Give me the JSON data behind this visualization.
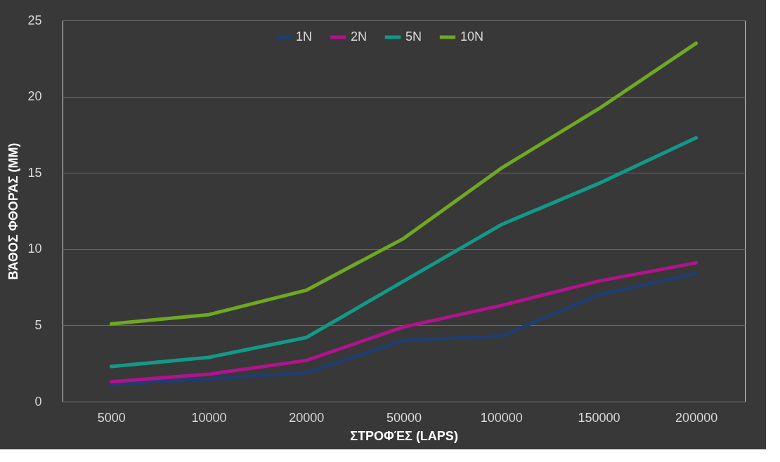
{
  "chart_data": {
    "type": "line",
    "xlabel": "ΣΤΡΟΦΈΣ (LAPS)",
    "ylabel": "ΒΆΘΟΣ ΦΘΟΡΆΣ (MM)",
    "categories": [
      "5000",
      "10000",
      "20000",
      "50000",
      "100000",
      "150000",
      "200000"
    ],
    "ylim": [
      0,
      25
    ],
    "yticks": [
      0,
      5,
      10,
      15,
      20,
      25
    ],
    "grid": "y",
    "legend": "top",
    "marker": "none",
    "line_style": "solid",
    "series": [
      {
        "name": "1N",
        "color": "#1f3d6e",
        "values": [
          1.1,
          1.5,
          1.9,
          4.0,
          4.3,
          7.0,
          8.4
        ]
      },
      {
        "name": "2N",
        "color": "#b0138c",
        "values": [
          1.3,
          1.8,
          2.7,
          4.9,
          6.3,
          7.9,
          9.1
        ]
      },
      {
        "name": "5N",
        "color": "#12998a",
        "values": [
          2.3,
          2.9,
          4.2,
          7.9,
          11.6,
          14.3,
          17.3
        ]
      },
      {
        "name": "10N",
        "color": "#6fa822",
        "values": [
          5.1,
          5.7,
          7.3,
          10.7,
          15.3,
          19.2,
          23.5
        ]
      }
    ]
  }
}
